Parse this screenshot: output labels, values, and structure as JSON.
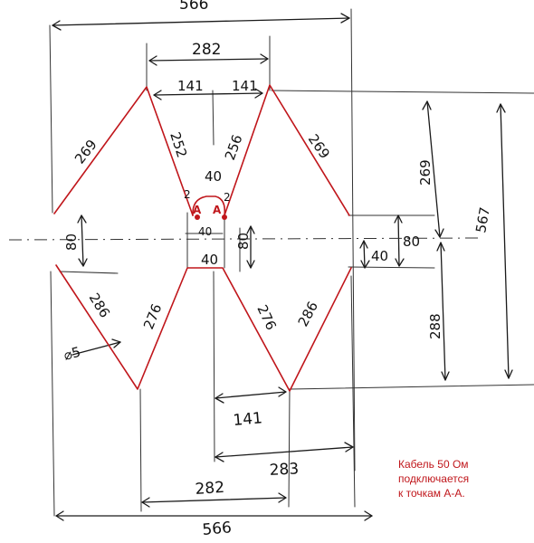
{
  "drawing": {
    "dimensions": {
      "overall_width_top": "566",
      "overall_width_bottom": "566",
      "peak_spacing_top": "282",
      "half_left_top": "141",
      "half_right_top": "141",
      "upper_outer_left": "269",
      "upper_inner_left": "252",
      "upper_inner_right": "256",
      "upper_outer_right": "269",
      "feed_gap_top": "40",
      "feed_gap_center": "40",
      "feed_gap_lower": "40",
      "feed_height_small": "80",
      "gap_left": "80",
      "gap_right": "80",
      "gap_half_right": "40",
      "upper_height_right": "269",
      "lower_height_right": "288",
      "total_height_right": "567",
      "lower_outer_left": "286",
      "lower_inner_left": "276",
      "lower_inner_right": "276",
      "lower_outer_right": "286",
      "wire_diameter": "⌀5",
      "half_lower": "141",
      "span_lower_mid": "283",
      "peak_spacing_bottom": "282",
      "end_mark_left": "2",
      "end_mark_right": "2"
    },
    "feed_points": {
      "left": "A",
      "right": "A"
    },
    "note": {
      "line1": "Кабель 50 Ом",
      "line2": "подключается",
      "line3": "к точкам А-А."
    },
    "colors": {
      "ink": "#1a1a1a",
      "antenna": "#c0161b",
      "paper": "#ffffff"
    }
  }
}
